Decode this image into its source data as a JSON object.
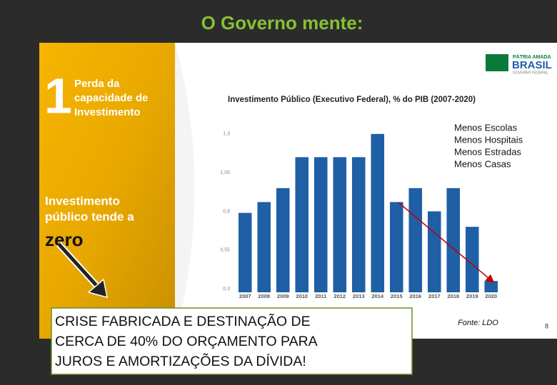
{
  "slide": {
    "title": "O Governo mente:",
    "panel_number": "1",
    "panel_heading": [
      "Perda da",
      "capacidade de",
      "Investimento"
    ],
    "panel_text": [
      "Investimento",
      "público tende a"
    ],
    "panel_emphasis": "zero",
    "logo": [
      "PÁTRIA AMADA",
      "BRASIL",
      "GOVERNO FEDERAL"
    ],
    "callout": [
      "Menos Escolas",
      "Menos Hospitais",
      "Menos Estradas",
      "Menos Casas"
    ],
    "source": "Fonte: LDO",
    "page_number": "8",
    "box_text": [
      "CRISE FABRICADA E DESTINAÇÃO DE",
      "CERCA DE 40% DO ORÇAMENTO PARA",
      "JUROS E AMORTIZAÇÕES DA DÍVIDA!"
    ]
  },
  "chart_data": {
    "type": "bar",
    "title": "Investimento Público (Executivo Federal), % do PIB (2007-2020)",
    "categories": [
      "2007",
      "2008",
      "2009",
      "2010",
      "2011",
      "2012",
      "2013",
      "2014",
      "2015",
      "2016",
      "2017",
      "2018",
      "2019",
      "2020"
    ],
    "values": [
      0.79,
      0.86,
      0.95,
      1.15,
      1.15,
      1.15,
      1.15,
      1.3,
      0.86,
      0.95,
      0.8,
      0.95,
      0.7,
      0.35
    ],
    "color": "#1f5fa6",
    "ylim": [
      0.3,
      1.35
    ],
    "yticks": [
      {
        "value": 0.3,
        "label": "0,3"
      },
      {
        "value": 0.55,
        "label": "0,55"
      },
      {
        "value": 0.8,
        "label": "0,8"
      },
      {
        "value": 1.05,
        "label": "1,05"
      },
      {
        "value": 1.3,
        "label": "1,3"
      }
    ],
    "grid": false
  }
}
